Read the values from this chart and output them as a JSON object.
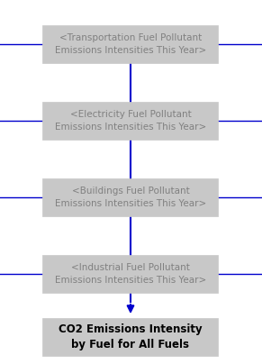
{
  "title": "CO2 Emissions Intensity\nby Fuel for All Fuels",
  "boxes": [
    "<Transportation Fuel Pollutant\nEmissions Intensities This Year>",
    "<Electricity Fuel Pollutant\nEmissions Intensities This Year>",
    "<Buildings Fuel Pollutant\nEmissions Intensities This Year>",
    "<Industrial Fuel Pollutant\nEmissions Intensities This Year>"
  ],
  "box_color": "#c8c8c8",
  "box_edge_color": "#c8c8c8",
  "title_box_color": "#c8c8c8",
  "title_box_edge_color": "#c8c8c8",
  "arrow_color": "#0000cc",
  "line_color": "#0000cc",
  "text_color": "#808080",
  "title_text_color": "#000000",
  "background_color": "#ffffff",
  "fig_width": 2.91,
  "fig_height": 4.04,
  "dpi": 100
}
